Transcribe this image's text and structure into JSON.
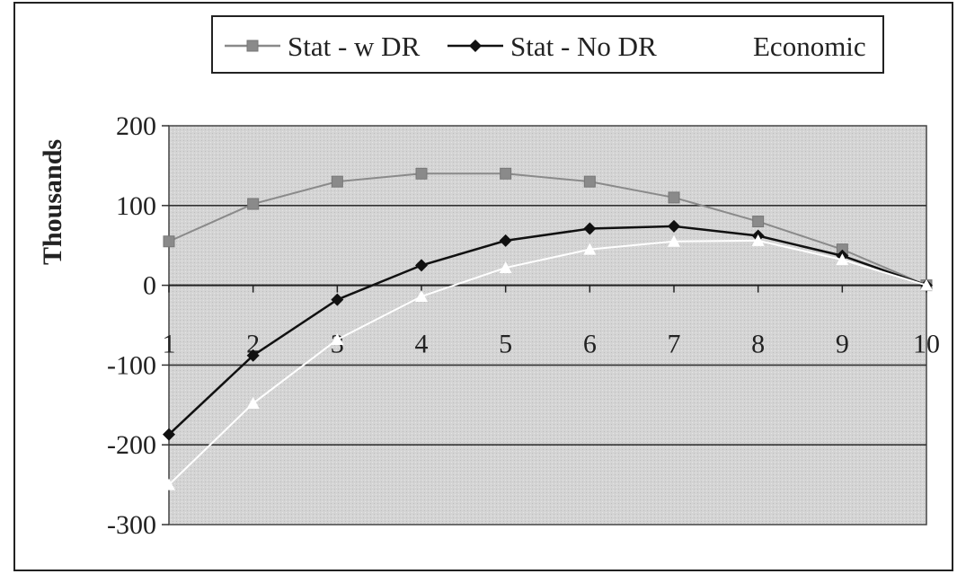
{
  "chart_data": {
    "type": "line",
    "x": [
      1,
      2,
      3,
      4,
      5,
      6,
      7,
      8,
      9,
      10
    ],
    "ylabel": "Thousands",
    "xlabel": "",
    "ylim": [
      -300,
      200
    ],
    "yticks": [
      200,
      100,
      0,
      -100,
      -200,
      -300
    ],
    "grid": true,
    "legend_position": "top",
    "series": [
      {
        "name": "Stat - w DR",
        "color": "#8a8a8a",
        "marker": "square",
        "values": [
          55,
          102,
          130,
          140,
          140,
          130,
          110,
          80,
          45,
          0
        ]
      },
      {
        "name": "Stat - No DR",
        "color": "#111111",
        "marker": "diamond",
        "values": [
          -187,
          -88,
          -18,
          25,
          56,
          71,
          74,
          62,
          37,
          0
        ]
      },
      {
        "name": "Economic",
        "color": "#ffffff",
        "marker": "triangle",
        "values": [
          -250,
          -148,
          -68,
          -14,
          22,
          45,
          55,
          56,
          32,
          0
        ]
      }
    ]
  }
}
